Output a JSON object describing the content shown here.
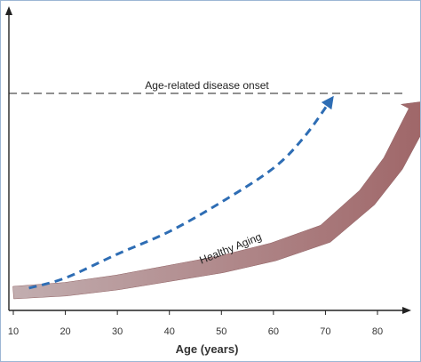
{
  "chart_data": {
    "type": "line",
    "title": "",
    "xlabel": "Age (years)",
    "ylabel": "",
    "xlim": [
      8,
      90
    ],
    "ylim": [
      0,
      100
    ],
    "grid": false,
    "x_ticks": [
      10,
      20,
      30,
      40,
      50,
      60,
      70,
      80
    ],
    "threshold": {
      "label": "Age-related disease onset",
      "y": 88
    },
    "series": [
      {
        "name": "",
        "style": "dashed-arrow",
        "color": "#2e6db4",
        "x": [
          13,
          20,
          30,
          40,
          50,
          60,
          66,
          71
        ],
        "y": [
          2,
          6.5,
          17,
          27,
          40,
          55,
          69,
          85
        ]
      },
      {
        "name": "Healthy Aging",
        "style": "thick-arrow",
        "color": "#a87476",
        "x": [
          10,
          20,
          30,
          40,
          50,
          60,
          70,
          78,
          83,
          88
        ],
        "y": [
          0,
          1.5,
          4.5,
          8.5,
          12.5,
          18,
          26,
          42,
          57,
          79
        ]
      }
    ]
  }
}
